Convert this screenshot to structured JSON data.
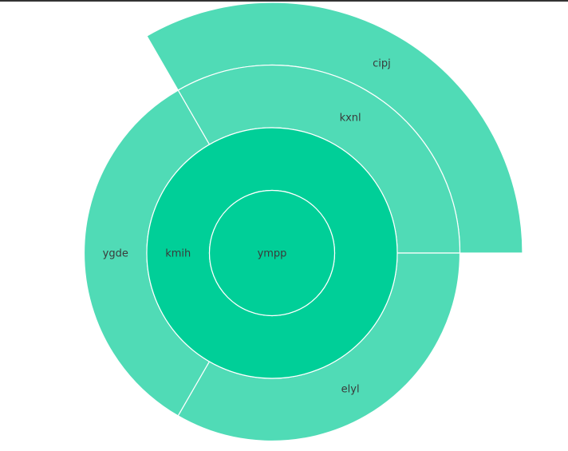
{
  "chart_data": {
    "type": "sunburst",
    "colors": {
      "inner": "#00cf98",
      "outer": "#50dbb6",
      "stroke": "#ffffff",
      "text": "#3a3a3a"
    },
    "nodes": [
      {
        "id": "ympp",
        "label": "ympp",
        "parent": "",
        "depth": 0,
        "start": 0.0,
        "end": 360.0
      },
      {
        "id": "kmih",
        "label": "kmih",
        "parent": "ympp",
        "depth": 1,
        "start": 0.0,
        "end": 360.0
      },
      {
        "id": "kxnl",
        "label": "kxnl",
        "parent": "kmih",
        "depth": 2,
        "start": 0.0,
        "end": 120.0
      },
      {
        "id": "ygde",
        "label": "ygde",
        "parent": "kmih",
        "depth": 2,
        "start": 120.0,
        "end": 240.0
      },
      {
        "id": "elyl",
        "label": "elyl",
        "parent": "kmih",
        "depth": 2,
        "start": 240.0,
        "end": 360.0
      },
      {
        "id": "cipj",
        "label": "cipj",
        "parent": "kxnl",
        "depth": 3,
        "start": 0.0,
        "end": 120.0
      }
    ]
  }
}
